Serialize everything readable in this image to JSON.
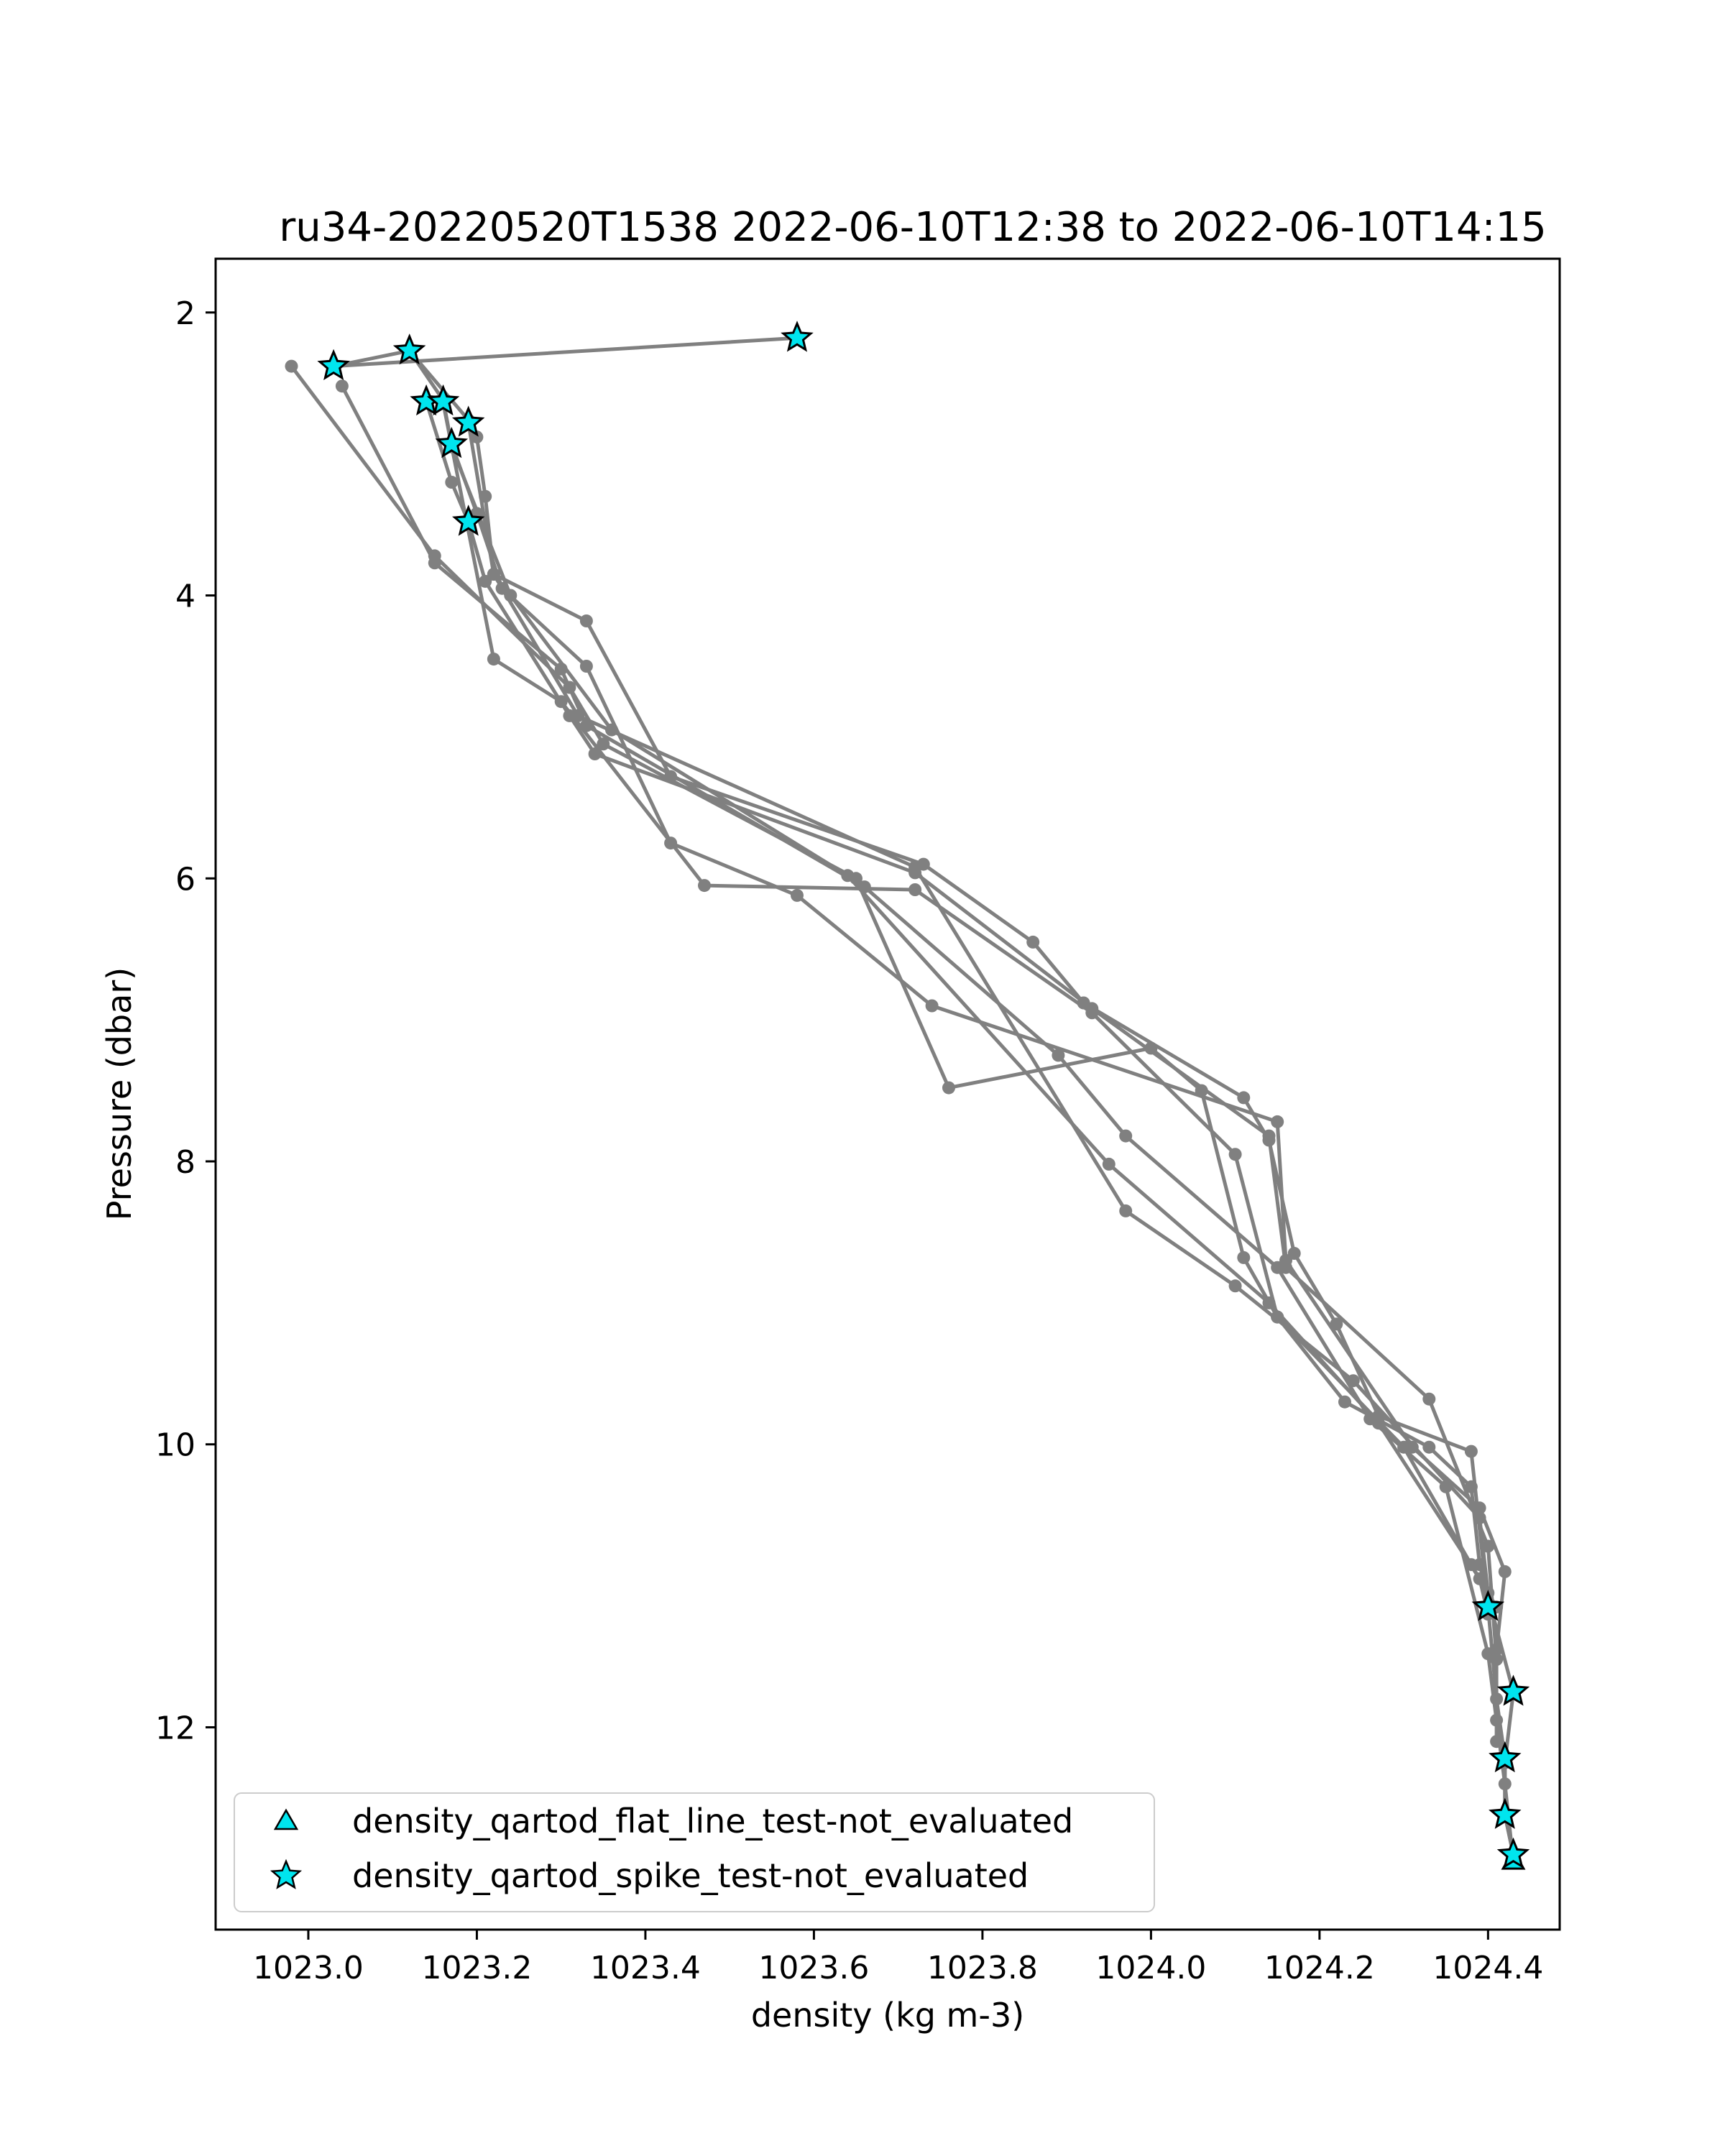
{
  "chart_data": {
    "type": "line",
    "title": "ru34-20220520T1538 2022-06-10T12:38 to 2022-06-10T14:15",
    "xlabel": "density (kg m-3)",
    "ylabel": "Pressure (dbar)",
    "xlim": [
      1022.89,
      1024.485
    ],
    "ylim": [
      13.43,
      1.62
    ],
    "y_inverted": true,
    "xticks": [
      1023.0,
      1023.2,
      1023.4,
      1023.6,
      1023.8,
      1024.0,
      1024.2,
      1024.4
    ],
    "xtick_labels": [
      "1023.0",
      "1023.2",
      "1023.4",
      "1023.6",
      "1023.8",
      "1024.0",
      "1024.2",
      "1024.4"
    ],
    "yticks": [
      2,
      4,
      6,
      8,
      10,
      12
    ],
    "ytick_labels": [
      "2",
      "4",
      "6",
      "8",
      "10",
      "12"
    ],
    "grid": false,
    "legend_position": "lower-left",
    "colors": {
      "profile_line": "#808080",
      "flag_fill": "#00e5ee",
      "flag_edge": "#000000"
    },
    "series": [
      {
        "values": [
          [
            1023.58,
            2.18
          ],
          [
            1023.03,
            2.38
          ],
          [
            1023.12,
            2.27
          ],
          [
            1023.19,
            2.76
          ],
          [
            1023.2,
            2.88
          ],
          [
            1023.21,
            3.3
          ],
          [
            1023.22,
            3.85
          ],
          [
            1023.33,
            4.18
          ],
          [
            1023.43,
            5.28
          ],
          [
            1023.73,
            5.9
          ],
          [
            1023.86,
            6.45
          ],
          [
            1023.92,
            6.88
          ],
          [
            1024.11,
            7.55
          ],
          [
            1024.14,
            7.85
          ],
          [
            1024.17,
            8.65
          ],
          [
            1024.22,
            9.15
          ],
          [
            1024.27,
            9.8
          ],
          [
            1024.38,
            10.05
          ],
          [
            1024.4,
            11.15
          ],
          [
            1024.41,
            11.8
          ],
          [
            1024.42,
            12.22
          ],
          [
            1024.42,
            12.62
          ],
          [
            1024.43,
            12.9
          ]
        ]
      },
      {
        "values": [
          [
            1022.98,
            2.38
          ],
          [
            1023.15,
            3.72
          ],
          [
            1023.31,
            4.65
          ],
          [
            1023.35,
            5.05
          ],
          [
            1023.65,
            6.0
          ],
          [
            1023.76,
            7.48
          ],
          [
            1024.0,
            7.2
          ],
          [
            1024.06,
            7.5
          ],
          [
            1024.11,
            8.68
          ],
          [
            1024.15,
            9.1
          ],
          [
            1024.23,
            9.7
          ],
          [
            1024.33,
            10.02
          ],
          [
            1024.38,
            10.3
          ],
          [
            1024.39,
            10.85
          ],
          [
            1024.43,
            11.75
          ],
          [
            1024.42,
            12.25
          ],
          [
            1024.42,
            12.62
          ],
          [
            1024.43,
            12.9
          ]
        ]
      },
      {
        "values": [
          [
            1023.04,
            2.52
          ],
          [
            1023.15,
            3.77
          ],
          [
            1023.3,
            4.52
          ],
          [
            1023.33,
            4.92
          ],
          [
            1023.66,
            6.06
          ],
          [
            1023.89,
            7.25
          ],
          [
            1023.97,
            7.82
          ],
          [
            1024.15,
            8.75
          ],
          [
            1024.26,
            9.82
          ],
          [
            1024.35,
            10.3
          ],
          [
            1024.4,
            11.48
          ],
          [
            1024.41,
            11.95
          ],
          [
            1024.42,
            12.4
          ],
          [
            1024.43,
            12.95
          ]
        ]
      },
      {
        "values": [
          [
            1023.12,
            2.27
          ],
          [
            1023.16,
            2.62
          ],
          [
            1023.17,
            2.93
          ],
          [
            1023.2,
            3.42
          ],
          [
            1023.23,
            3.95
          ],
          [
            1023.33,
            4.5
          ],
          [
            1023.43,
            5.75
          ],
          [
            1023.58,
            6.12
          ],
          [
            1023.74,
            6.9
          ],
          [
            1024.15,
            7.72
          ],
          [
            1024.16,
            8.7
          ],
          [
            1024.31,
            10.02
          ],
          [
            1024.39,
            10.45
          ],
          [
            1024.42,
            10.9
          ],
          [
            1024.41,
            11.45
          ],
          [
            1024.41,
            12.1
          ]
        ]
      },
      {
        "values": [
          [
            1023.14,
            2.63
          ],
          [
            1023.17,
            3.2
          ],
          [
            1023.19,
            3.48
          ],
          [
            1023.21,
            3.9
          ],
          [
            1023.31,
            4.85
          ],
          [
            1023.34,
            5.12
          ],
          [
            1023.72,
            5.96
          ],
          [
            1023.93,
            6.92
          ],
          [
            1024.14,
            7.82
          ],
          [
            1024.16,
            8.75
          ],
          [
            1024.33,
            9.68
          ],
          [
            1024.4,
            10.72
          ],
          [
            1024.41,
            11.52
          ]
        ]
      },
      {
        "values": [
          [
            1023.16,
            2.64
          ],
          [
            1023.22,
            4.45
          ],
          [
            1023.3,
            4.75
          ],
          [
            1023.47,
            6.05
          ],
          [
            1023.72,
            6.08
          ],
          [
            1023.93,
            6.95
          ],
          [
            1024.1,
            7.95
          ],
          [
            1024.15,
            9.1
          ],
          [
            1024.3,
            10.02
          ],
          [
            1024.38,
            10.85
          ],
          [
            1024.41,
            11.15
          ]
        ]
      },
      {
        "values": [
          [
            1023.17,
            2.95
          ],
          [
            1023.24,
            4.0
          ],
          [
            1023.36,
            4.95
          ],
          [
            1023.64,
            5.98
          ],
          [
            1023.95,
            8.02
          ],
          [
            1024.14,
            9.0
          ],
          [
            1024.27,
            9.85
          ],
          [
            1024.39,
            10.95
          ],
          [
            1024.4,
            11.2
          ]
        ]
      },
      {
        "values": [
          [
            1023.19,
            2.78
          ],
          [
            1023.22,
            3.85
          ],
          [
            1023.32,
            4.85
          ],
          [
            1023.72,
            5.92
          ],
          [
            1023.97,
            8.35
          ],
          [
            1024.1,
            8.88
          ],
          [
            1024.24,
            9.55
          ],
          [
            1024.39,
            10.52
          ],
          [
            1024.4,
            11.05
          ]
        ]
      }
    ],
    "flags": [
      {
        "name": "density_qartod_flat_line_test-not_evaluated",
        "marker": "triangle",
        "points": [
          [
            1024.43,
            12.95
          ]
        ]
      },
      {
        "name": "density_qartod_spike_test-not_evaluated",
        "marker": "star",
        "points": [
          [
            1023.58,
            2.18
          ],
          [
            1023.03,
            2.38
          ],
          [
            1023.12,
            2.27
          ],
          [
            1023.14,
            2.63
          ],
          [
            1023.16,
            2.63
          ],
          [
            1023.19,
            2.78
          ],
          [
            1023.17,
            2.93
          ],
          [
            1023.19,
            3.48
          ],
          [
            1024.4,
            11.15
          ],
          [
            1024.43,
            11.75
          ],
          [
            1024.42,
            12.22
          ],
          [
            1024.42,
            12.62
          ],
          [
            1024.43,
            12.9
          ]
        ]
      }
    ],
    "legend": [
      {
        "marker": "triangle",
        "label": "density_qartod_flat_line_test-not_evaluated"
      },
      {
        "marker": "star",
        "label": "density_qartod_spike_test-not_evaluated"
      }
    ]
  }
}
